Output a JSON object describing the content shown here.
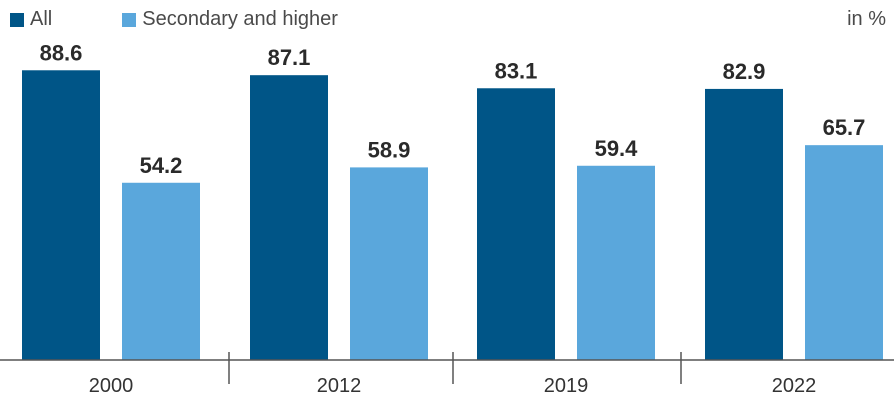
{
  "chart_data": {
    "type": "bar",
    "categories": [
      "2000",
      "2012",
      "2019",
      "2022"
    ],
    "series": [
      {
        "name": "All",
        "values": [
          88.6,
          87.1,
          83.1,
          82.9
        ],
        "color": "#005587"
      },
      {
        "name": "Secondary and higher",
        "values": [
          54.2,
          58.9,
          59.4,
          65.7
        ],
        "color": "#5aa7dc"
      }
    ],
    "unit_label": "in %",
    "ylim": [
      0,
      100
    ],
    "grid": false,
    "legend_position": "top-left"
  }
}
